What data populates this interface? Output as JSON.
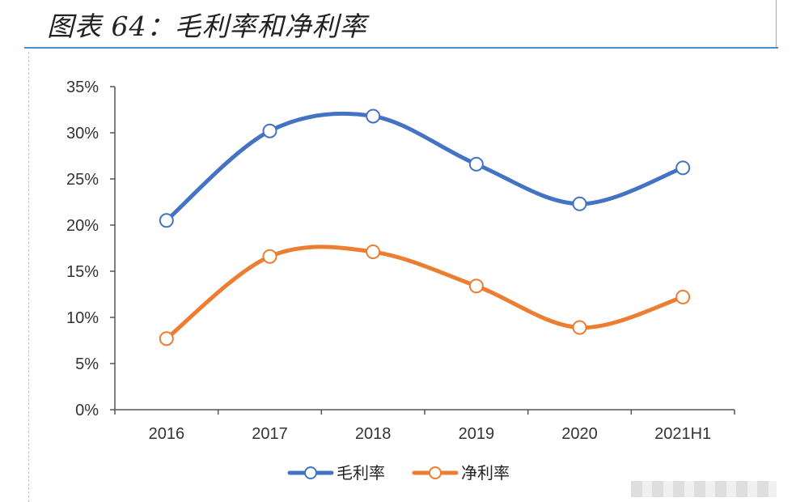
{
  "title": "图表 64：毛利率和净利率",
  "colors": {
    "accent_rule": "#4a90c8",
    "axis": "#555555"
  },
  "chart_data": {
    "type": "line",
    "title": "图表 64：毛利率和净利率",
    "categories": [
      "2016",
      "2017",
      "2018",
      "2019",
      "2020",
      "2021H1"
    ],
    "y_ticks": [
      "0%",
      "5%",
      "10%",
      "15%",
      "20%",
      "25%",
      "30%",
      "35%"
    ],
    "ylim": [
      0,
      35
    ],
    "y_unit": "%",
    "grid": false,
    "smooth": true,
    "legend_position": "bottom",
    "series": [
      {
        "name": "毛利率",
        "color": "#4472c4",
        "values": [
          20.5,
          30.2,
          31.8,
          26.6,
          22.3,
          26.2
        ]
      },
      {
        "name": "净利率",
        "color": "#ed7d31",
        "values": [
          7.7,
          16.6,
          17.1,
          13.4,
          8.9,
          12.2
        ]
      }
    ]
  }
}
